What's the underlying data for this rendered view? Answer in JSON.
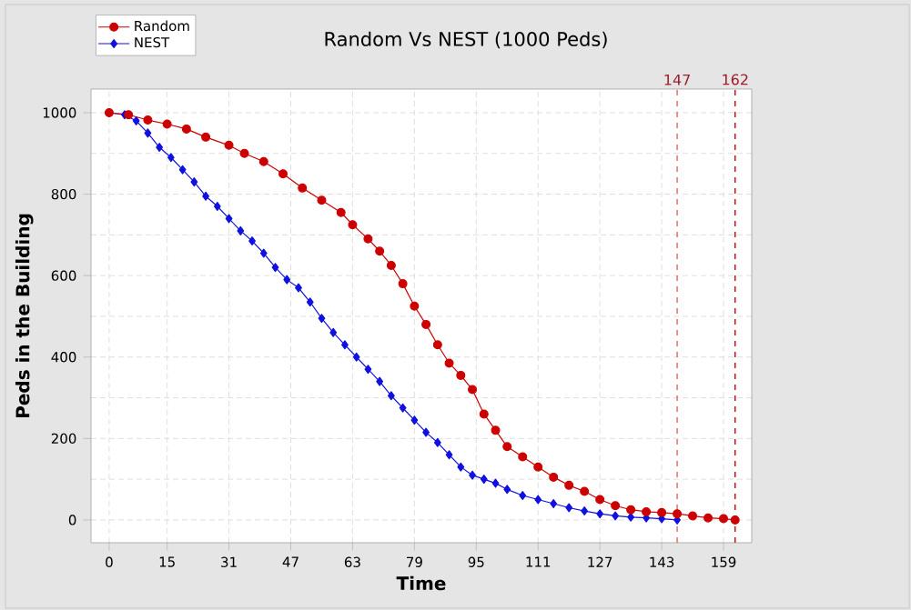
{
  "chart_data": {
    "type": "line",
    "title": "Random Vs NEST (1000 Peds)",
    "xlabel": "Time",
    "ylabel": "Peds in the Building",
    "xlim": [
      -4.7,
      166.3
    ],
    "ylim": [
      -56,
      1058
    ],
    "xticks": [
      0,
      15,
      31,
      47,
      63,
      79,
      95,
      111,
      127,
      143,
      159
    ],
    "yticks": [
      0,
      200,
      400,
      600,
      800,
      1000
    ],
    "grid": true,
    "legend": "top left",
    "line_style": "solid",
    "ref_lines": [
      {
        "axis": "x",
        "value": 147,
        "label": "147",
        "color": "#e06666"
      },
      {
        "axis": "x",
        "value": 162,
        "label": "162",
        "color": "#cc0000"
      }
    ],
    "series": [
      {
        "name": "Random",
        "color": "#cc0000",
        "marker": "circle",
        "x": [
          0,
          5,
          10,
          15,
          20,
          25,
          31,
          35,
          40,
          45,
          50,
          55,
          60,
          63,
          67,
          70,
          73,
          76,
          79,
          82,
          85,
          88,
          91,
          94,
          97,
          100,
          103,
          107,
          111,
          115,
          119,
          123,
          127,
          131,
          135,
          139,
          143,
          147,
          151,
          155,
          159,
          162
        ],
        "values": [
          1000,
          995,
          982,
          972,
          960,
          940,
          920,
          900,
          880,
          850,
          815,
          785,
          755,
          725,
          690,
          660,
          625,
          580,
          525,
          480,
          430,
          385,
          355,
          320,
          260,
          220,
          180,
          155,
          130,
          105,
          85,
          70,
          50,
          35,
          25,
          20,
          18,
          15,
          10,
          5,
          3,
          0
        ]
      },
      {
        "name": "NEST",
        "color": "#1010e0",
        "marker": "diamond",
        "x": [
          0,
          4,
          7,
          10,
          13,
          16,
          19,
          22,
          25,
          28,
          31,
          34,
          37,
          40,
          43,
          46,
          49,
          52,
          55,
          58,
          61,
          64,
          67,
          70,
          73,
          76,
          79,
          82,
          85,
          88,
          91,
          94,
          97,
          100,
          103,
          107,
          111,
          115,
          119,
          123,
          127,
          131,
          135,
          139,
          143,
          147
        ],
        "values": [
          1000,
          995,
          980,
          950,
          915,
          890,
          860,
          830,
          795,
          770,
          740,
          710,
          685,
          655,
          620,
          590,
          570,
          535,
          495,
          460,
          430,
          400,
          370,
          340,
          305,
          275,
          245,
          215,
          190,
          160,
          130,
          110,
          100,
          90,
          75,
          60,
          50,
          40,
          30,
          22,
          15,
          10,
          7,
          5,
          3,
          0
        ]
      }
    ]
  }
}
